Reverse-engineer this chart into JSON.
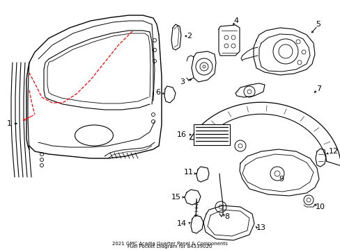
{
  "title": "2021 GMC Acadia Quarter Panel & Components\nFuel Pocket Diagram for 84339020",
  "bg": "#ffffff",
  "lc": "#000000",
  "rc": "#ff0000",
  "figsize": [
    4.89,
    3.6
  ],
  "dpi": 100
}
